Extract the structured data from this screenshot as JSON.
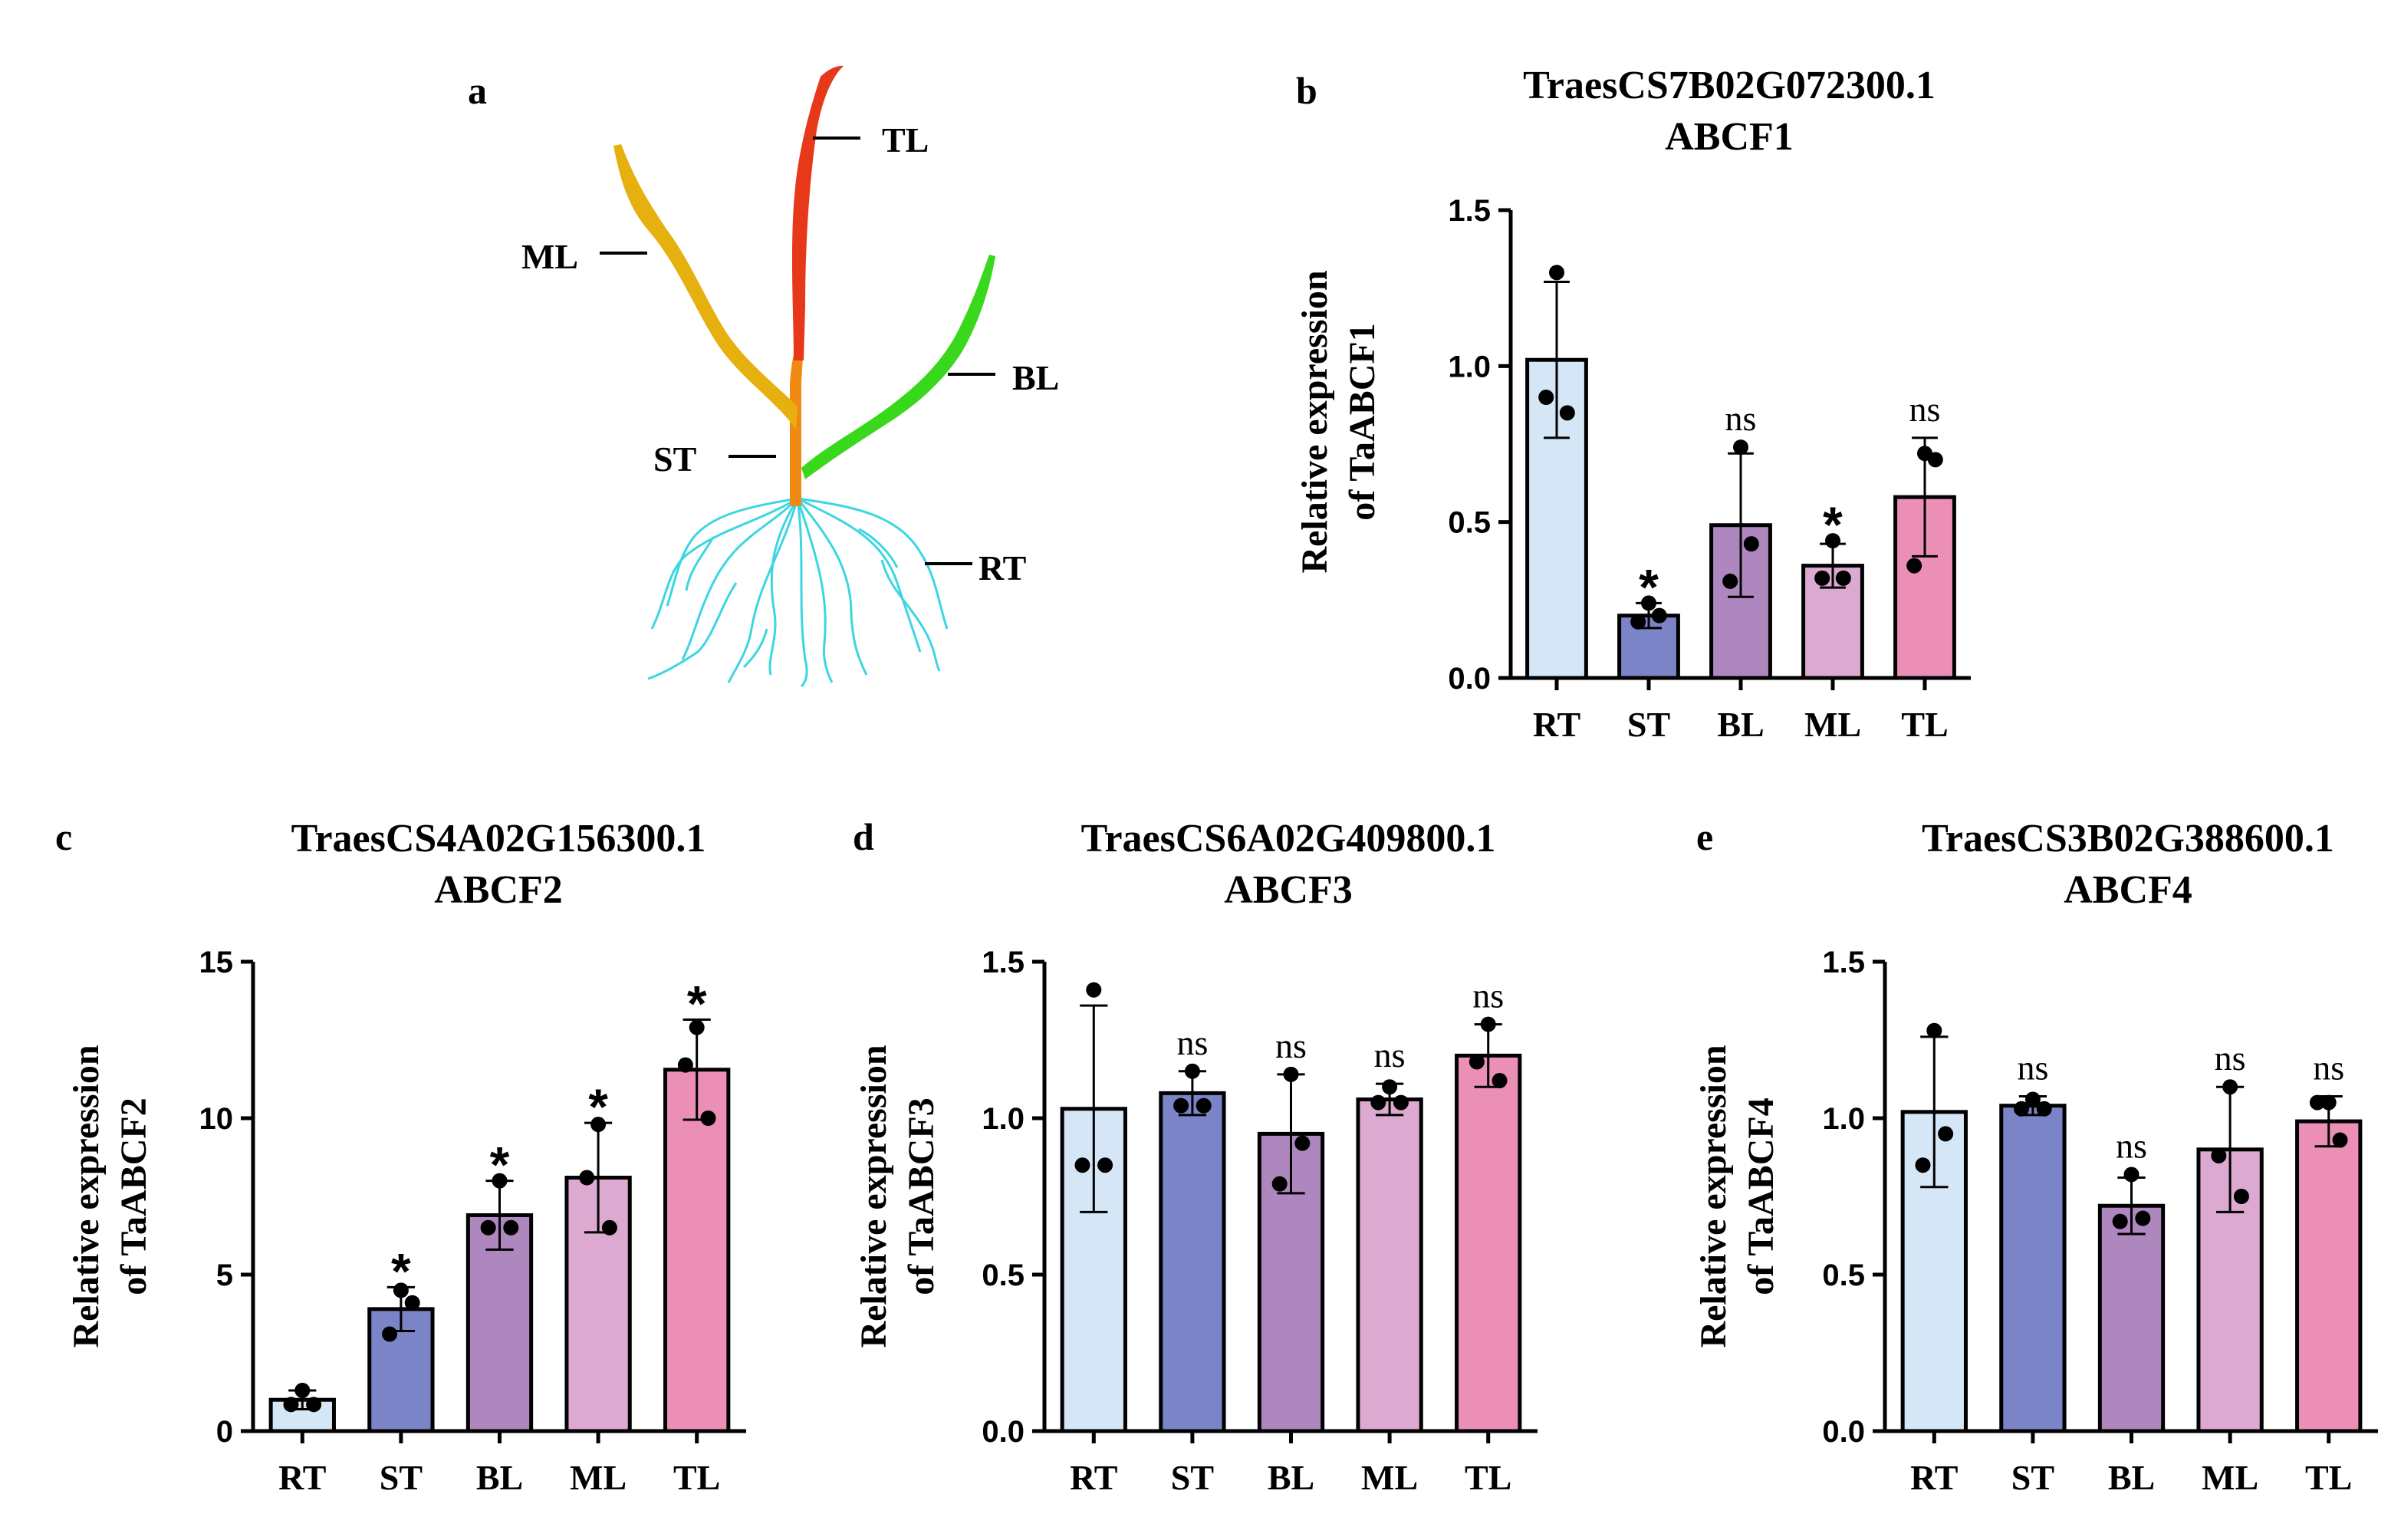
{
  "figure": {
    "panel_a": {
      "letter": "a",
      "labels": [
        "TL",
        "ML",
        "BL",
        "ST",
        "RT"
      ],
      "colors": {
        "TL": "#e8381a",
        "ML": "#e6b10f",
        "BL": "#39d81c",
        "ST": "#f08a12",
        "RT": "#3cd6e3"
      }
    }
  },
  "chart_data": [
    {
      "panel": "b",
      "type": "bar",
      "title": "TraesCS7B02G072300.1",
      "subtitle": "ABCF1",
      "ylabel": [
        "Relative expression",
        "of TaABCF1"
      ],
      "categories": [
        "RT",
        "ST",
        "BL",
        "ML",
        "TL"
      ],
      "values": [
        1.02,
        0.2,
        0.49,
        0.36,
        0.58
      ],
      "errors": [
        0.25,
        0.04,
        0.23,
        0.07,
        0.19
      ],
      "points": [
        [
          1.3,
          0.9,
          0.85
        ],
        [
          0.24,
          0.18,
          0.2
        ],
        [
          0.74,
          0.31,
          0.43
        ],
        [
          0.44,
          0.32,
          0.32
        ],
        [
          0.72,
          0.36,
          0.7
        ]
      ],
      "significance": [
        "",
        "*",
        "ns",
        "*",
        "ns"
      ],
      "ylim": [
        0,
        1.5
      ],
      "yticks": [
        "0.0",
        "0.5",
        "1.0",
        "1.5"
      ],
      "ytick_values": [
        0,
        0.5,
        1.0,
        1.5
      ],
      "colors": [
        "#d5e6f6",
        "#7b84c6",
        "#ae87bf",
        "#dca9d0",
        "#ec8fb7"
      ]
    },
    {
      "panel": "c",
      "type": "bar",
      "title": "TraesCS4A02G156300.1",
      "subtitle": "ABCF2",
      "ylabel": [
        "Relative expression",
        "of TaABCF2"
      ],
      "categories": [
        "RT",
        "ST",
        "BL",
        "ML",
        "TL"
      ],
      "values": [
        1.0,
        3.9,
        6.9,
        8.1,
        11.55
      ],
      "errors": [
        0.3,
        0.7,
        1.1,
        1.75,
        1.6
      ],
      "points": [
        [
          1.3,
          0.85,
          0.85
        ],
        [
          4.5,
          3.1,
          4.1
        ],
        [
          8.0,
          6.5,
          6.5
        ],
        [
          9.8,
          8.1,
          6.5
        ],
        [
          12.9,
          11.7,
          10.0
        ]
      ],
      "significance": [
        "",
        "*",
        "*",
        "*",
        "*"
      ],
      "ylim": [
        0,
        15
      ],
      "yticks": [
        "0",
        "5",
        "10",
        "15"
      ],
      "ytick_values": [
        0,
        5,
        10,
        15
      ],
      "colors": [
        "#d5e6f6",
        "#7b84c6",
        "#ae87bf",
        "#dca9d0",
        "#ec8fb7"
      ]
    },
    {
      "panel": "d",
      "type": "bar",
      "title": "TraesCS6A02G409800.1",
      "subtitle": "ABCF3",
      "ylabel": [
        "Relative expression",
        "of TaABCF3"
      ],
      "categories": [
        "RT",
        "ST",
        "BL",
        "ML",
        "TL"
      ],
      "values": [
        1.03,
        1.08,
        0.95,
        1.06,
        1.2
      ],
      "errors": [
        0.33,
        0.07,
        0.19,
        0.05,
        0.1
      ],
      "points": [
        [
          1.41,
          0.85,
          0.85
        ],
        [
          1.15,
          1.04,
          1.04
        ],
        [
          1.14,
          0.79,
          0.92
        ],
        [
          1.1,
          1.05,
          1.05
        ],
        [
          1.3,
          1.18,
          1.12
        ]
      ],
      "significance": [
        "",
        "ns",
        "ns",
        "ns",
        "ns"
      ],
      "ylim": [
        0,
        1.5
      ],
      "yticks": [
        "0.0",
        "0.5",
        "1.0",
        "1.5"
      ],
      "ytick_values": [
        0,
        0.5,
        1.0,
        1.5
      ],
      "colors": [
        "#d5e6f6",
        "#7b84c6",
        "#ae87bf",
        "#dca9d0",
        "#ec8fb7"
      ]
    },
    {
      "panel": "e",
      "type": "bar",
      "title": "TraesCS3B02G388600.1",
      "subtitle": "ABCF4",
      "ylabel": [
        "Relative expression",
        "of TaABCF4"
      ],
      "categories": [
        "RT",
        "ST",
        "BL",
        "ML",
        "TL"
      ],
      "values": [
        1.02,
        1.04,
        0.72,
        0.9,
        0.99
      ],
      "errors": [
        0.24,
        0.03,
        0.09,
        0.2,
        0.08
      ],
      "points": [
        [
          1.28,
          0.85,
          0.95
        ],
        [
          1.06,
          1.03,
          1.03
        ],
        [
          0.82,
          0.67,
          0.68
        ],
        [
          1.1,
          0.88,
          0.75
        ],
        [
          1.05,
          1.05,
          0.93
        ]
      ],
      "significance": [
        "",
        "ns",
        "ns",
        "ns",
        "ns"
      ],
      "ylim": [
        0,
        1.5
      ],
      "yticks": [
        "0.0",
        "0.5",
        "1.0",
        "1.5"
      ],
      "ytick_values": [
        0,
        0.5,
        1.0,
        1.5
      ],
      "colors": [
        "#d5e6f6",
        "#7b84c6",
        "#ae87bf",
        "#dca9d0",
        "#ec8fb7"
      ]
    }
  ]
}
